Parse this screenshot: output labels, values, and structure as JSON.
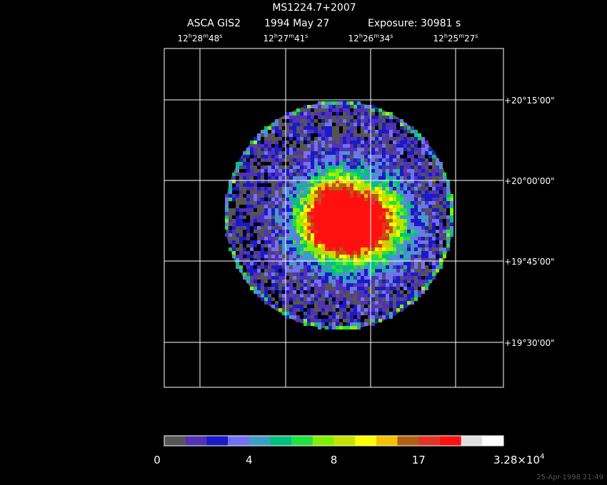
{
  "header": {
    "title": "MS1224.7+2007",
    "instrument": "ASCA GIS2",
    "date": "1994 May 27",
    "exposure": "Exposure: 30981 s"
  },
  "ra_labels": [
    [
      "12",
      "h",
      "28",
      "m",
      "48",
      "s"
    ],
    [
      "12",
      "h",
      "27",
      "m",
      "41",
      "s"
    ],
    [
      "12",
      "h",
      "26",
      "m",
      "34",
      "s"
    ],
    [
      "12",
      "h",
      "25",
      "m",
      "27",
      "s"
    ]
  ],
  "dec_labels": [
    "+20°15'00\"",
    "+20°00'00\"",
    "+19°45'00\"",
    "+19°30'00\""
  ],
  "colorbar": {
    "colors": [
      "#555555",
      "#5232b4",
      "#1a1ac8",
      "#7272f0",
      "#3f9ec4",
      "#00c080",
      "#22e040",
      "#80f000",
      "#c4e400",
      "#ffff00",
      "#f4c000",
      "#b06010",
      "#e03424",
      "#ff1010",
      "#e0e0e0",
      "#ffffff"
    ],
    "labels": [
      {
        "text": "0"
      },
      {
        "text": "4"
      },
      {
        "text": "8"
      },
      {
        "text": "17"
      },
      {
        "text": "3.28×10",
        "exponent": "4"
      }
    ]
  },
  "footer": "25-Apr-1998 21:49"
}
